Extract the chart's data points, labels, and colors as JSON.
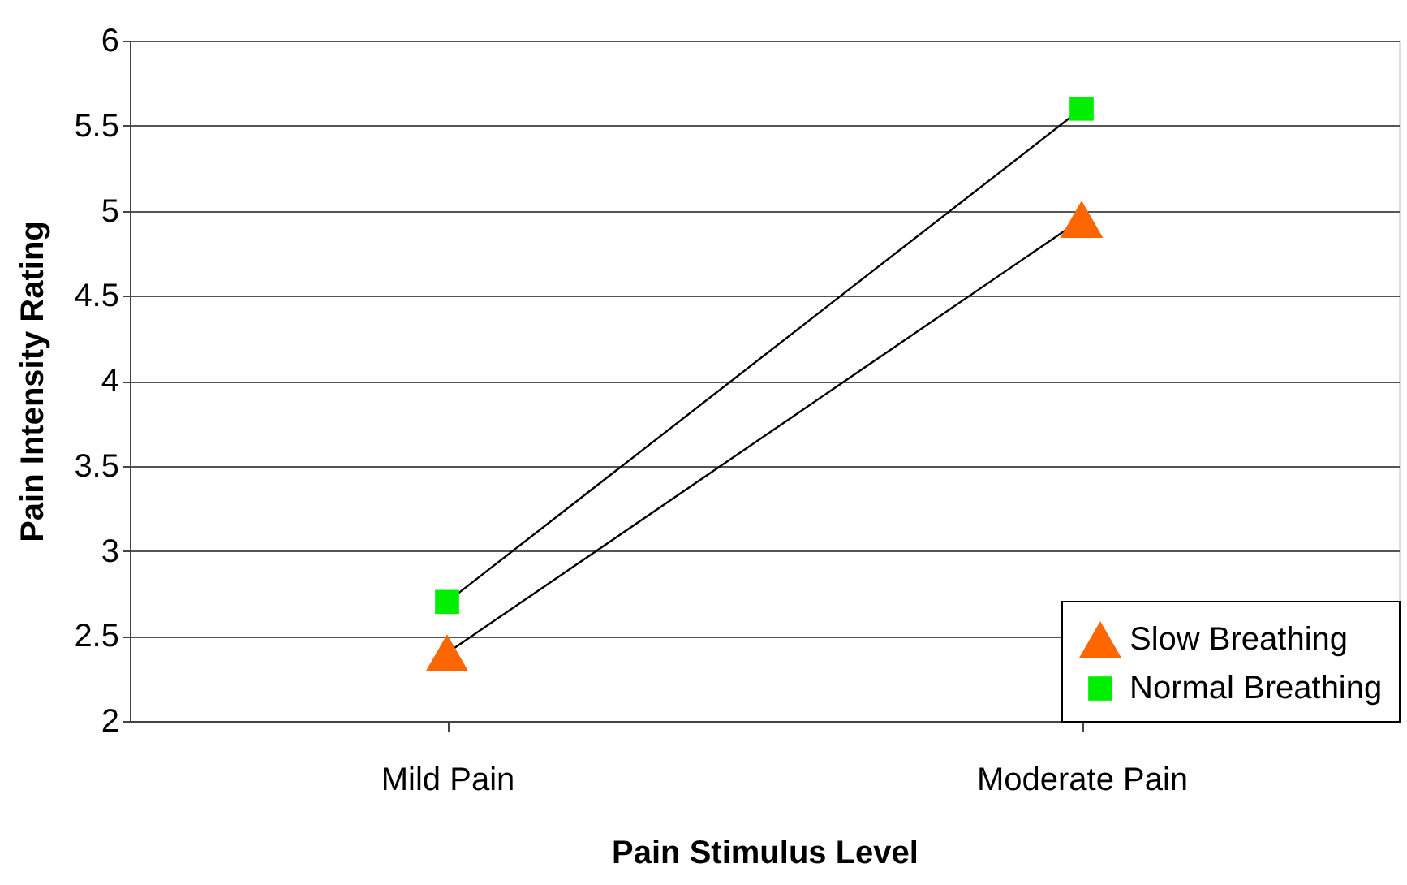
{
  "chart_data": {
    "type": "line",
    "xlabel": "Pain Stimulus Level",
    "ylabel": "Pain Intensity Rating",
    "categories": [
      "Mild Pain",
      "Moderate Pain"
    ],
    "series": [
      {
        "name": "Slow Breathing",
        "color": "#ff6600",
        "marker": "triangle",
        "values": [
          2.4,
          4.95
        ]
      },
      {
        "name": "Normal Breathing",
        "color": "#00ee00",
        "marker": "square",
        "values": [
          2.7,
          5.6
        ]
      }
    ],
    "ylim": [
      2,
      6
    ],
    "yticks": [
      2,
      2.5,
      3,
      3.5,
      4,
      4.5,
      5,
      5.5,
      6
    ],
    "grid": "y",
    "legend": "bottom right"
  }
}
